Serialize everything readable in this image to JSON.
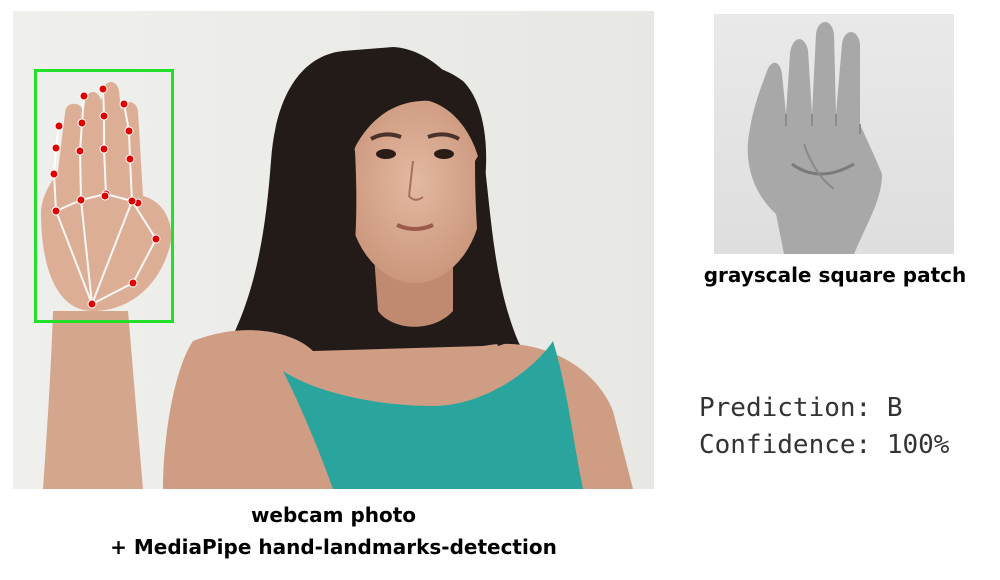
{
  "captions": {
    "webcam_line1": "webcam photo",
    "webcam_line2": "+ MediaPipe hand-landmarks-detection",
    "patch": "grayscale square patch"
  },
  "result": {
    "prediction_label": "Prediction:",
    "prediction_value": "B",
    "confidence_label": "Confidence:",
    "confidence_value": "100%"
  },
  "colors": {
    "bounding_box": "#22e02a",
    "landmark_points": "#e00000",
    "landmark_connections": "#ffffff"
  },
  "landmark_count": 21
}
